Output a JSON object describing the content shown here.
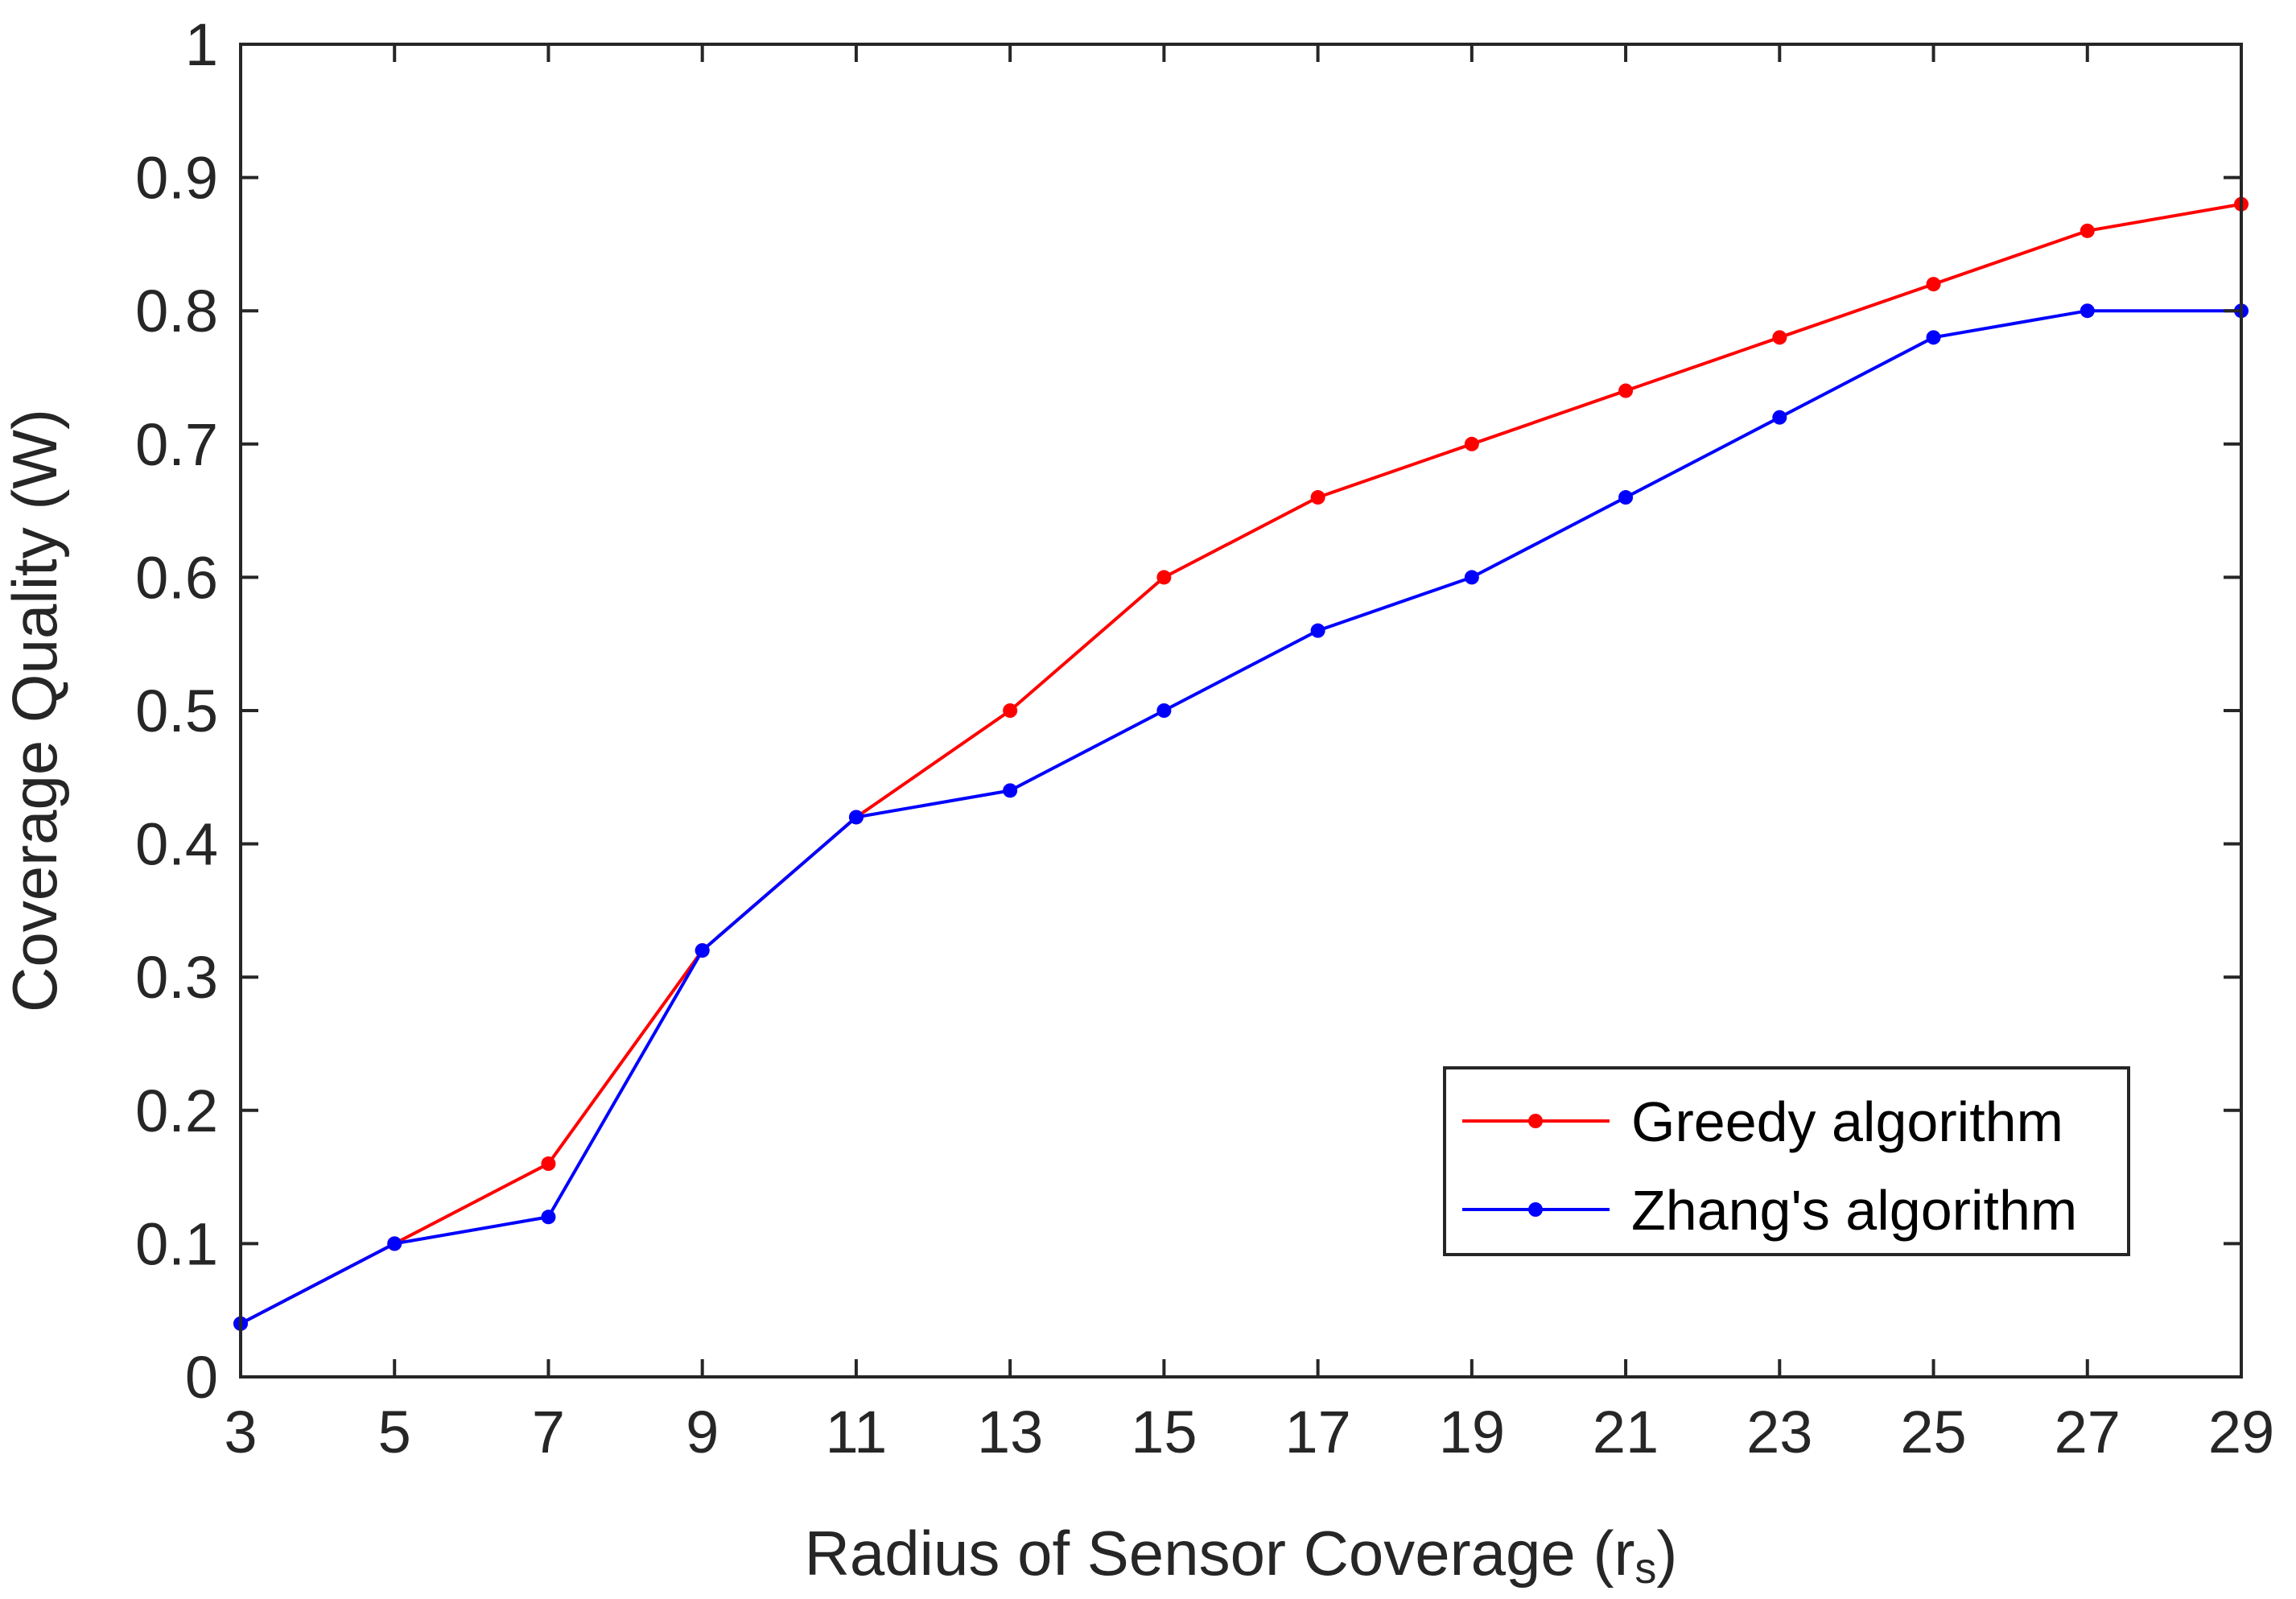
{
  "chart_data": {
    "type": "line",
    "title": "",
    "xlabel": "Radius of Sensor Coverage (r",
    "xlabel_subscript": "s",
    "xlabel_suffix": ")",
    "ylabel": "Coverage Quality (W)",
    "x": [
      3,
      5,
      7,
      9,
      11,
      13,
      15,
      17,
      19,
      21,
      23,
      25,
      27,
      29
    ],
    "xlim": [
      3,
      29
    ],
    "ylim": [
      0,
      1
    ],
    "x_ticks": [
      "3",
      "5",
      "7",
      "9",
      "11",
      "13",
      "15",
      "17",
      "19",
      "21",
      "23",
      "25",
      "27",
      "29"
    ],
    "y_ticks": [
      "0",
      "0.1",
      "0.2",
      "0.3",
      "0.4",
      "0.5",
      "0.6",
      "0.7",
      "0.8",
      "0.9",
      "1"
    ],
    "grid": false,
    "legend_position": "bottom-right",
    "series": [
      {
        "name": "Greedy algorithm",
        "color": "#ff0000",
        "values": [
          0.04,
          0.1,
          0.16,
          0.32,
          0.42,
          0.5,
          0.6,
          0.66,
          0.7,
          0.74,
          0.78,
          0.82,
          0.86,
          0.88
        ]
      },
      {
        "name": "Zhang's algorithm",
        "color": "#0000ff",
        "values": [
          0.04,
          0.1,
          0.12,
          0.32,
          0.42,
          0.44,
          0.5,
          0.56,
          0.6,
          0.66,
          0.72,
          0.78,
          0.8,
          0.8
        ]
      }
    ]
  }
}
